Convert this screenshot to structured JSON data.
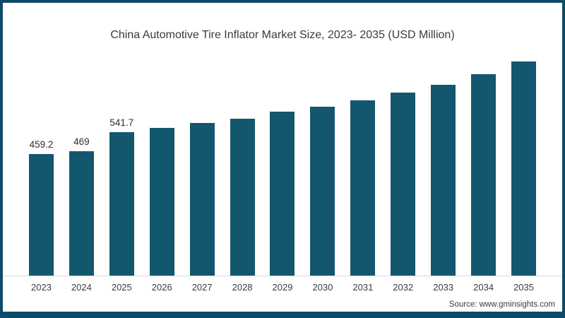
{
  "frame": {
    "border_color": "#0d4c68",
    "background_color": "#ffffff"
  },
  "chart_data": {
    "type": "bar",
    "title": "China Automotive Tire Inflator Market Size, 2023- 2035 (USD Million)",
    "categories": [
      "2023",
      "2024",
      "2025",
      "2026",
      "2027",
      "2028",
      "2029",
      "2030",
      "2031",
      "2032",
      "2033",
      "2034",
      "2035"
    ],
    "values": [
      459.2,
      469,
      541.7,
      558,
      575,
      593,
      618,
      636,
      660,
      690,
      720,
      760,
      808
    ],
    "value_labels": [
      "459.2",
      "469",
      "541.7",
      "",
      "",
      "",
      "",
      "",
      "",
      "",
      "",
      "",
      ""
    ],
    "xlabel": "",
    "ylabel": "",
    "ylim": [
      0,
      880
    ],
    "grid": false,
    "legend": false,
    "bar_color": "#12576e",
    "axis_line_color": "#d9d9d9",
    "label_color": "#2d2d2d",
    "tick_color": "#3b3b3b"
  },
  "source": {
    "text": "Source: www.gminsights.com"
  }
}
